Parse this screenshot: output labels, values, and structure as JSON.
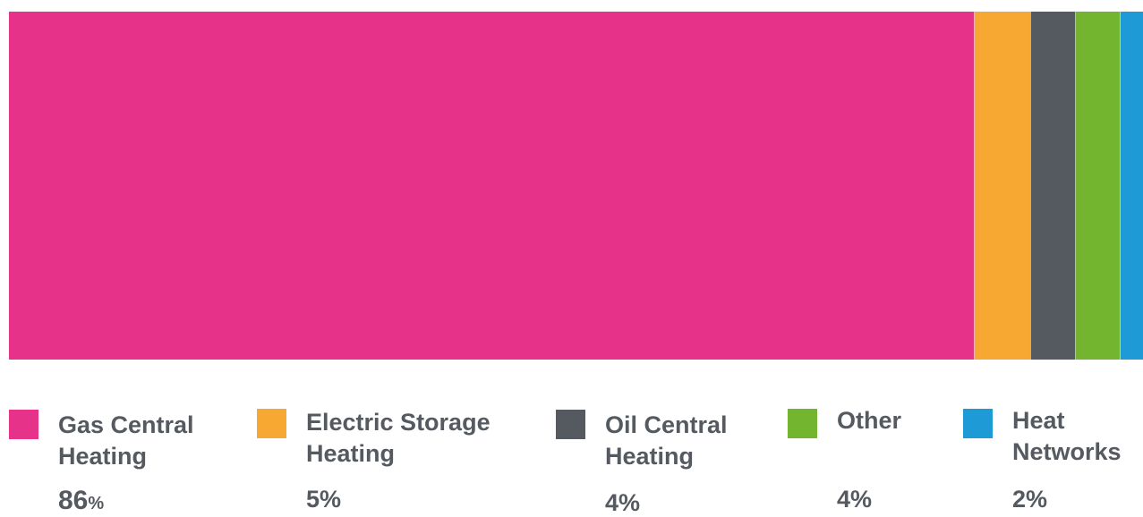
{
  "chart_data": {
    "type": "bar",
    "orientation": "horizontal-stacked",
    "legend_position": "bottom",
    "categories": [
      "Gas Central Heating",
      "Electric Storage Heating",
      "Oil Central Heating",
      "Other",
      "Heat Networks"
    ],
    "values": [
      86,
      5,
      4,
      4,
      2
    ],
    "value_labels": [
      "86",
      "5",
      "4",
      "4",
      "2"
    ],
    "unit": "%",
    "colors": [
      "#e63389",
      "#f7a833",
      "#555a60",
      "#74b530",
      "#1e9bd7"
    ]
  },
  "legend": [
    {
      "line1": "Gas Central",
      "line2": "Heating",
      "value": "86",
      "unit": "%"
    },
    {
      "line1": "Electric Storage",
      "line2": "Heating",
      "value": "5",
      "unit": "%"
    },
    {
      "line1": "Oil Central",
      "line2": "Heating",
      "value": "4",
      "unit": "%"
    },
    {
      "line1": "Other",
      "line2": "",
      "value": "4",
      "unit": "%"
    },
    {
      "line1": "Heat",
      "line2": "Networks",
      "value": "2",
      "unit": "%"
    }
  ]
}
